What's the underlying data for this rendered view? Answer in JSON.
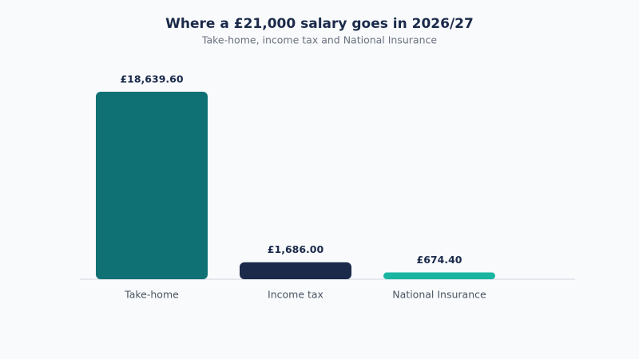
{
  "chart_data": {
    "type": "bar",
    "title": "Where a £21,000 salary goes in 2026/27",
    "subtitle": "Take-home, income tax and National Insurance",
    "categories": [
      "Take-home",
      "Income tax",
      "National Insurance"
    ],
    "values": [
      18639.6,
      1686,
      674.4
    ],
    "value_labels": [
      "£18,639.60",
      "£1,686.00",
      "£674.40"
    ],
    "colors": [
      "#0f7173",
      "#1b2a4a",
      "#19b5a1"
    ]
  }
}
